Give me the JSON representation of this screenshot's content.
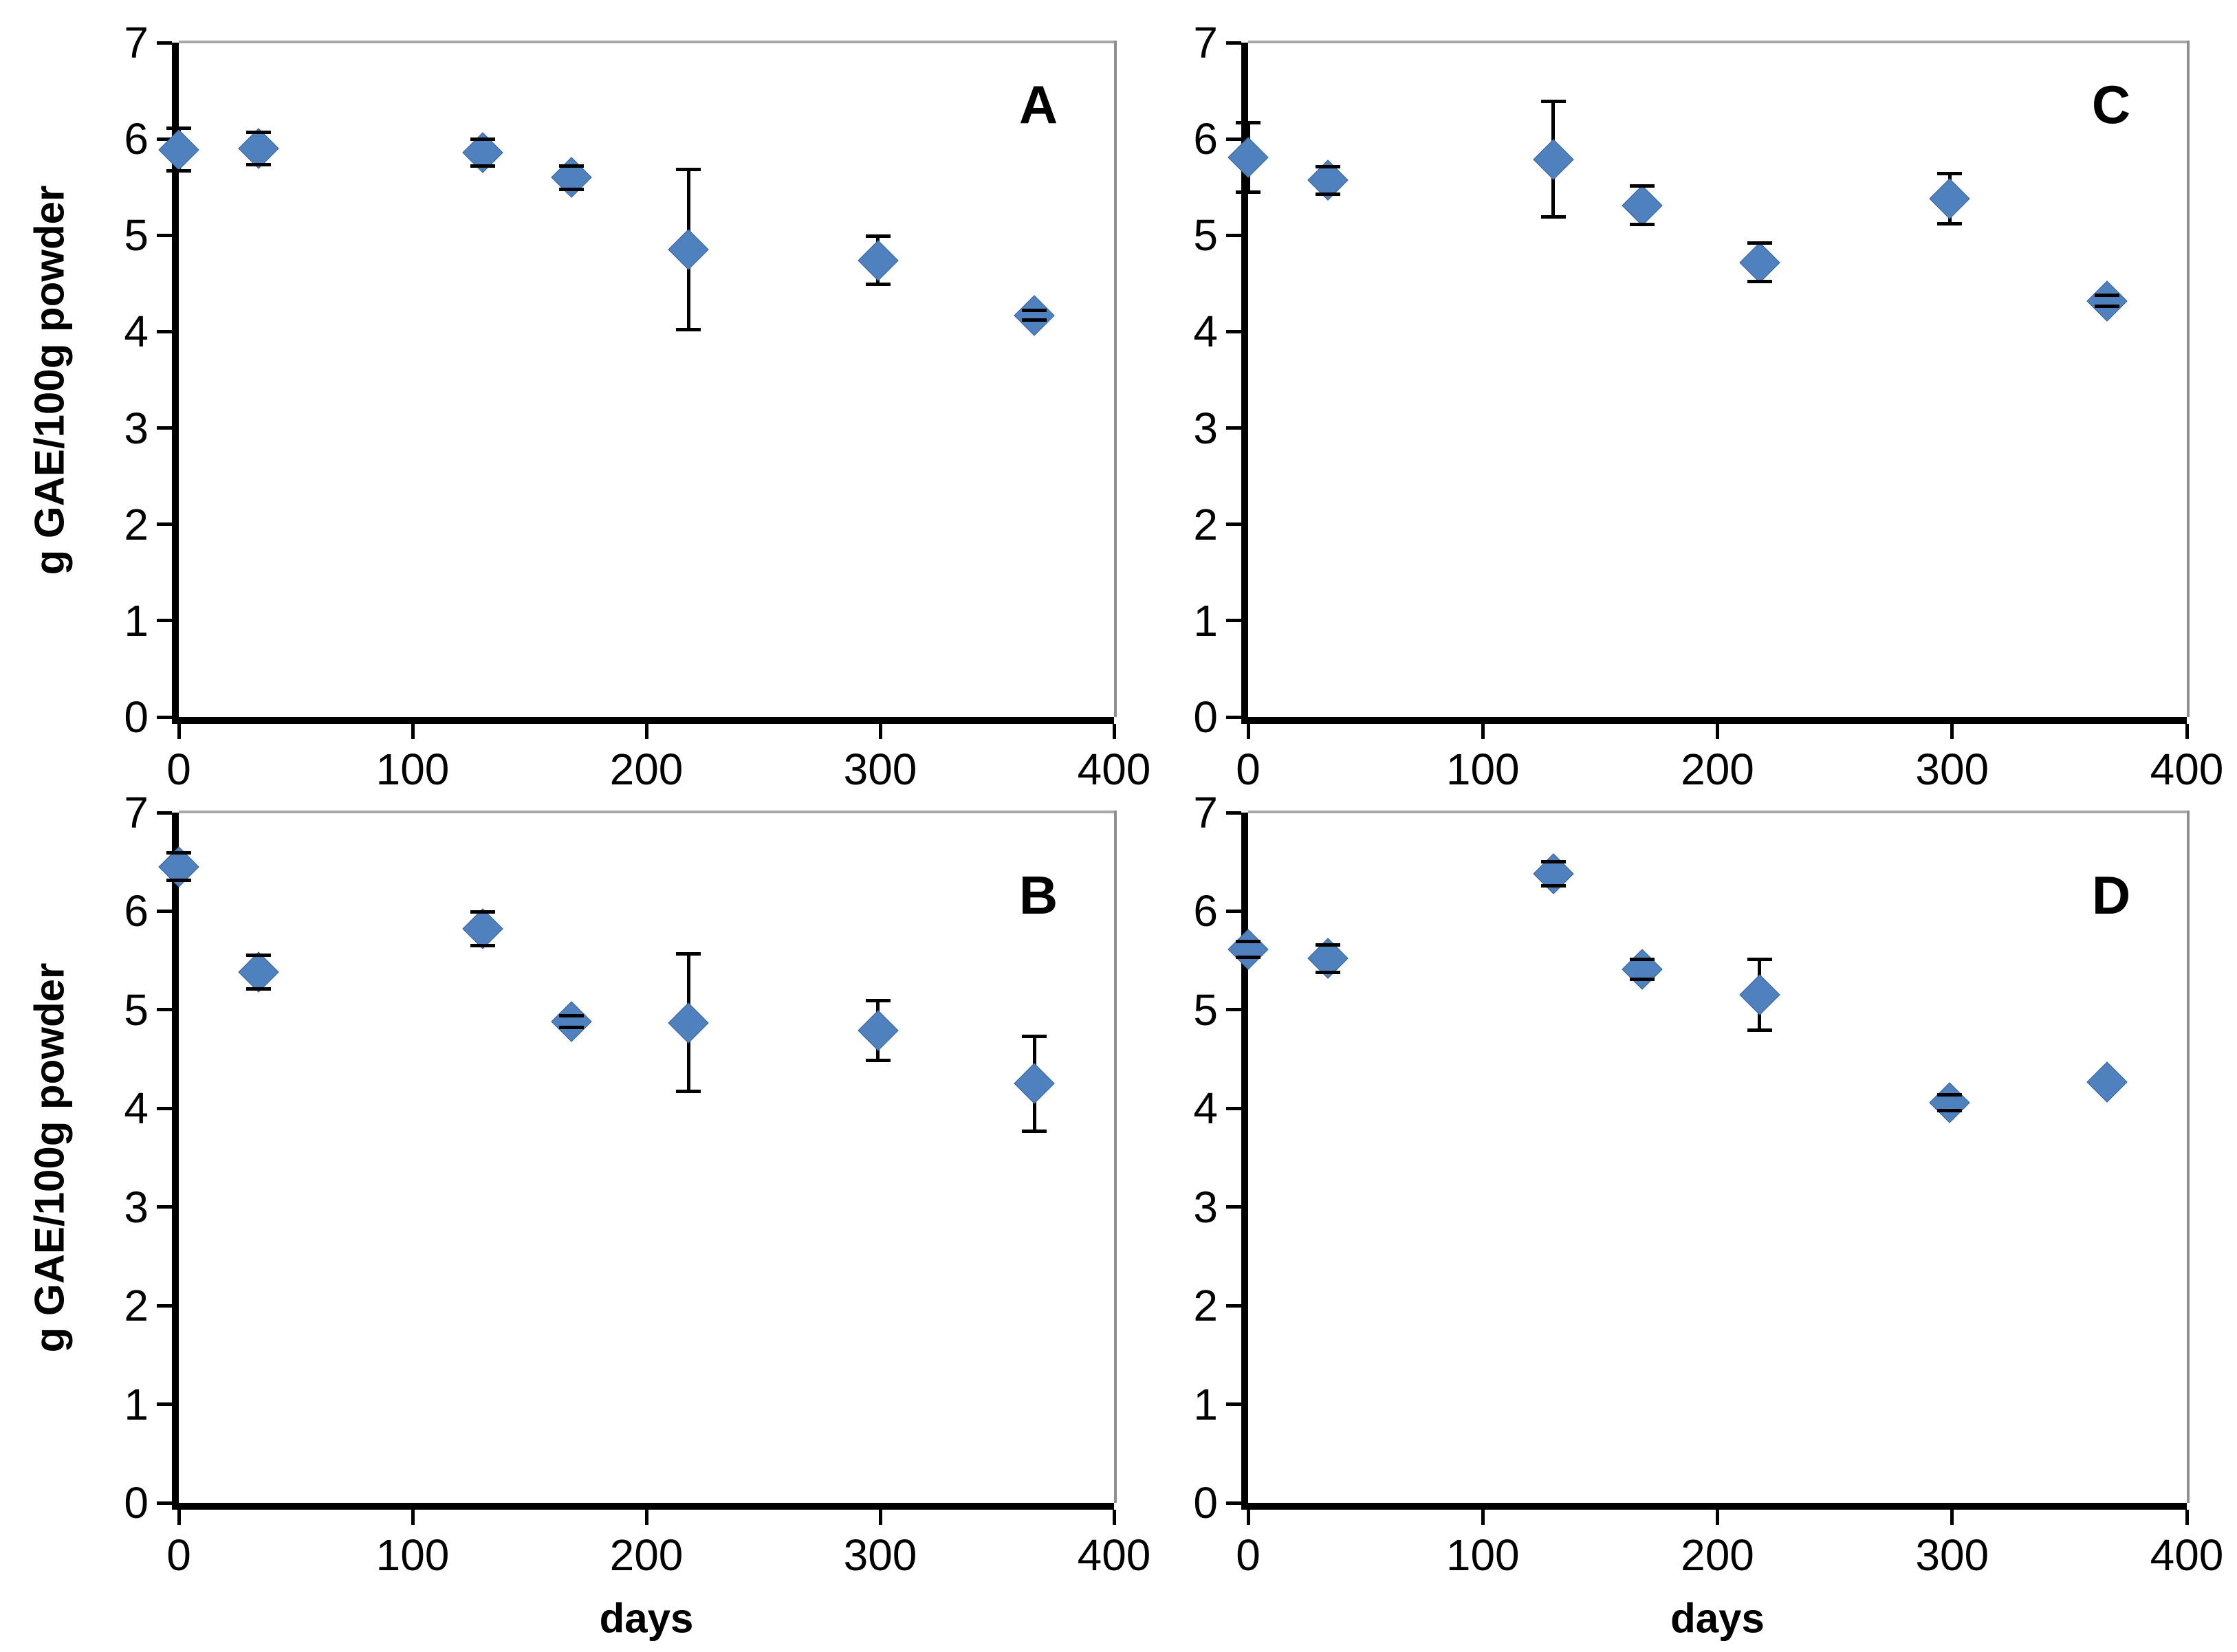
{
  "figure": {
    "ylabel": "g GAE/100g powder",
    "xlabel": "days",
    "x_ticks": [
      0,
      100,
      200,
      300,
      400
    ],
    "y_ticks": [
      0,
      1,
      2,
      3,
      4,
      5,
      6,
      7
    ],
    "colors": {
      "marker": "#4E81BD",
      "marker_edge": "#3A66A0",
      "error_bar": "#000000",
      "axis": "#000000",
      "gridline": "#A6A6A6",
      "plot_border": "#8F8F8F",
      "text": "#000000",
      "background": "#FFFFFF"
    }
  },
  "chart_data": [
    {
      "panel": "A",
      "type": "scatter",
      "marker": "diamond",
      "title": "",
      "xlabel": "",
      "ylabel": "g GAE/100g powder",
      "xlim": [
        0,
        400
      ],
      "ylim": [
        0,
        7
      ],
      "x": [
        0,
        34,
        130,
        168,
        218,
        299,
        366
      ],
      "y": [
        5.89,
        5.9,
        5.86,
        5.6,
        4.85,
        4.74,
        4.17
      ],
      "yerr": [
        0.22,
        0.17,
        0.14,
        0.12,
        0.83,
        0.25,
        0.05
      ]
    },
    {
      "panel": "B",
      "type": "scatter",
      "marker": "diamond",
      "title": "",
      "xlabel": "days",
      "ylabel": "g GAE/100g powder",
      "xlim": [
        0,
        400
      ],
      "ylim": [
        0,
        7
      ],
      "x": [
        0,
        34,
        130,
        168,
        218,
        299,
        366
      ],
      "y": [
        6.45,
        5.38,
        5.82,
        4.88,
        4.87,
        4.79,
        4.25
      ],
      "yerr": [
        0.14,
        0.17,
        0.17,
        0.06,
        0.7,
        0.3,
        0.48
      ]
    },
    {
      "panel": "C",
      "type": "scatter",
      "marker": "diamond",
      "title": "",
      "xlabel": "",
      "ylabel": "",
      "xlim": [
        0,
        400
      ],
      "ylim": [
        0,
        7
      ],
      "x": [
        0,
        34,
        130,
        168,
        218,
        299,
        366
      ],
      "y": [
        5.81,
        5.57,
        5.79,
        5.31,
        4.72,
        5.38,
        4.32
      ],
      "yerr": [
        0.36,
        0.14,
        0.6,
        0.2,
        0.2,
        0.26,
        0.06
      ]
    },
    {
      "panel": "D",
      "type": "scatter",
      "marker": "diamond",
      "title": "",
      "xlabel": "days",
      "ylabel": "",
      "xlim": [
        0,
        400
      ],
      "ylim": [
        0,
        7
      ],
      "x": [
        0,
        34,
        130,
        168,
        218,
        299,
        366
      ],
      "y": [
        5.61,
        5.52,
        6.38,
        5.41,
        5.15,
        4.06,
        4.27
      ],
      "yerr": [
        0.08,
        0.14,
        0.12,
        0.1,
        0.36,
        0.08,
        0
      ]
    }
  ]
}
